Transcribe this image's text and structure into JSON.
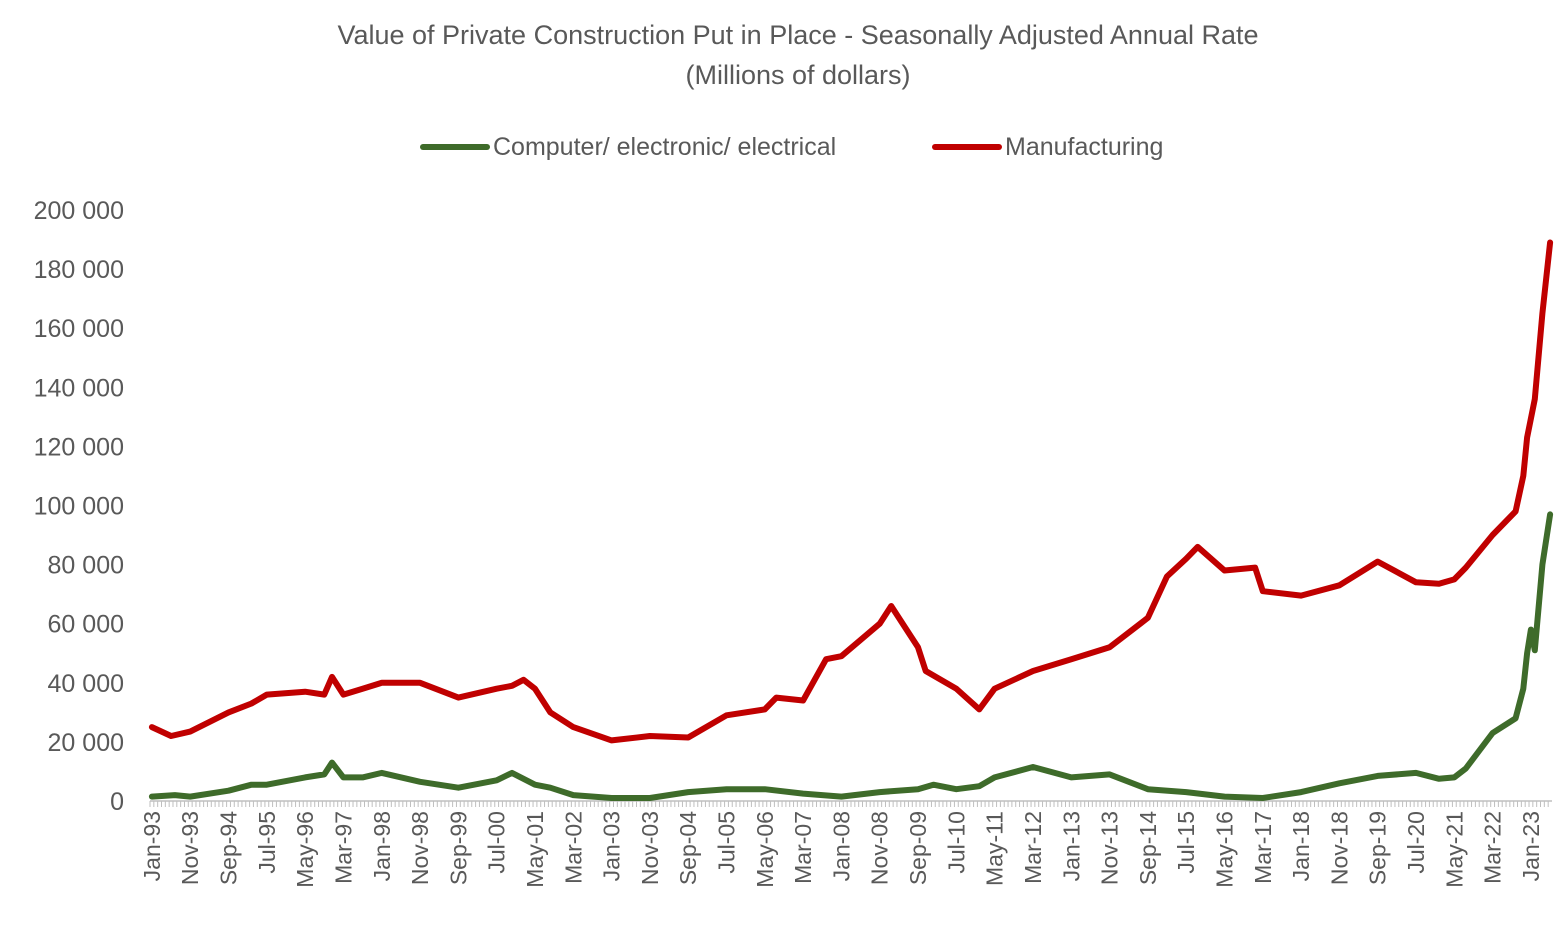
{
  "chart_data": {
    "type": "line",
    "title": "Value of Private Construction Put in Place - Seasonally Adjusted Annual Rate",
    "subtitle": "(Millions of dollars)",
    "xlabel": "",
    "ylabel": "",
    "ylim": [
      0,
      200000
    ],
    "yticks": [
      0,
      20000,
      40000,
      60000,
      80000,
      100000,
      120000,
      140000,
      160000,
      180000,
      200000
    ],
    "ytick_labels": [
      "0",
      "20 000",
      "40 000",
      "60 000",
      "80 000",
      "100 000",
      "120 000",
      "140 000",
      "160 000",
      "180 000",
      "200 000"
    ],
    "xtick_labels": [
      "Jan-93",
      "Nov-93",
      "Sep-94",
      "Jul-95",
      "May-96",
      "Mar-97",
      "Jan-98",
      "Nov-98",
      "Sep-99",
      "Jul-00",
      "May-01",
      "Mar-02",
      "Jan-03",
      "Nov-03",
      "Sep-04",
      "Jul-05",
      "May-06",
      "Mar-07",
      "Jan-08",
      "Nov-08",
      "Sep-09",
      "Jul-10",
      "May-11",
      "Mar-12",
      "Jan-13",
      "Nov-13",
      "Sep-14",
      "Jul-15",
      "May-16",
      "Mar-17",
      "Jan-18",
      "Nov-18",
      "Sep-19",
      "Jul-20",
      "May-21",
      "Mar-22",
      "Jan-23"
    ],
    "legend_position": "top",
    "grid": false,
    "series": [
      {
        "name": "Computer/ electronic/ electrical",
        "color": "#3e6b2a",
        "points": [
          [
            "Jan-93",
            1500
          ],
          [
            "Jul-93",
            2000
          ],
          [
            "Nov-93",
            1500
          ],
          [
            "Sep-94",
            3500
          ],
          [
            "Mar-95",
            5500
          ],
          [
            "Jul-95",
            5500
          ],
          [
            "May-96",
            8000
          ],
          [
            "Oct-96",
            9000
          ],
          [
            "Dec-96",
            13000
          ],
          [
            "Mar-97",
            8000
          ],
          [
            "Aug-97",
            8000
          ],
          [
            "Jan-98",
            9500
          ],
          [
            "Nov-98",
            6500
          ],
          [
            "Sep-99",
            4500
          ],
          [
            "Jul-00",
            7000
          ],
          [
            "Nov-00",
            9500
          ],
          [
            "May-01",
            5500
          ],
          [
            "Sep-01",
            4500
          ],
          [
            "Mar-02",
            2000
          ],
          [
            "Jan-03",
            1000
          ],
          [
            "Nov-03",
            1000
          ],
          [
            "Sep-04",
            3000
          ],
          [
            "Jul-05",
            4000
          ],
          [
            "May-06",
            4000
          ],
          [
            "Mar-07",
            2500
          ],
          [
            "Jan-08",
            1500
          ],
          [
            "Nov-08",
            3000
          ],
          [
            "Sep-09",
            4000
          ],
          [
            "Jan-10",
            5500
          ],
          [
            "Jul-10",
            4000
          ],
          [
            "Jan-11",
            5000
          ],
          [
            "May-11",
            8000
          ],
          [
            "Mar-12",
            11500
          ],
          [
            "Jan-13",
            8000
          ],
          [
            "Nov-13",
            9000
          ],
          [
            "Sep-14",
            4000
          ],
          [
            "Jul-15",
            3000
          ],
          [
            "May-16",
            1500
          ],
          [
            "Mar-17",
            1000
          ],
          [
            "Jan-18",
            3000
          ],
          [
            "Nov-18",
            6000
          ],
          [
            "Sep-19",
            8500
          ],
          [
            "Jul-20",
            9500
          ],
          [
            "Jan-21",
            7500
          ],
          [
            "May-21",
            8000
          ],
          [
            "Aug-21",
            11000
          ],
          [
            "Mar-22",
            23000
          ],
          [
            "Sep-22",
            28000
          ],
          [
            "Nov-22",
            38000
          ],
          [
            "Dec-22",
            50000
          ],
          [
            "Jan-23",
            58000
          ],
          [
            "Feb-23",
            51000
          ],
          [
            "Apr-23",
            80000
          ],
          [
            "Jun-23",
            97000
          ]
        ]
      },
      {
        "name": "Manufacturing",
        "color": "#c00000",
        "points": [
          [
            "Jan-93",
            25000
          ],
          [
            "Jun-93",
            22000
          ],
          [
            "Nov-93",
            23500
          ],
          [
            "Sep-94",
            30000
          ],
          [
            "Mar-95",
            33000
          ],
          [
            "Jul-95",
            36000
          ],
          [
            "May-96",
            37000
          ],
          [
            "Oct-96",
            36000
          ],
          [
            "Dec-96",
            42000
          ],
          [
            "Mar-97",
            36000
          ],
          [
            "Aug-97",
            38000
          ],
          [
            "Jan-98",
            40000
          ],
          [
            "Nov-98",
            40000
          ],
          [
            "Sep-99",
            35000
          ],
          [
            "Jul-00",
            38000
          ],
          [
            "Nov-00",
            39000
          ],
          [
            "Feb-01",
            41000
          ],
          [
            "May-01",
            38000
          ],
          [
            "Sep-01",
            30000
          ],
          [
            "Mar-02",
            25000
          ],
          [
            "Jan-03",
            20500
          ],
          [
            "Nov-03",
            22000
          ],
          [
            "Sep-04",
            21500
          ],
          [
            "Jul-05",
            29000
          ],
          [
            "May-06",
            31000
          ],
          [
            "Aug-06",
            35000
          ],
          [
            "Mar-07",
            34000
          ],
          [
            "Sep-07",
            48000
          ],
          [
            "Jan-08",
            49000
          ],
          [
            "Nov-08",
            60000
          ],
          [
            "Feb-09",
            66000
          ],
          [
            "Sep-09",
            52000
          ],
          [
            "Nov-09",
            44000
          ],
          [
            "Jul-10",
            38000
          ],
          [
            "Jan-11",
            31000
          ],
          [
            "May-11",
            38000
          ],
          [
            "Mar-12",
            44000
          ],
          [
            "Jan-13",
            48000
          ],
          [
            "Nov-13",
            52000
          ],
          [
            "Sep-14",
            62000
          ],
          [
            "Feb-15",
            76000
          ],
          [
            "Jul-15",
            82000
          ],
          [
            "Oct-15",
            86000
          ],
          [
            "May-16",
            78000
          ],
          [
            "Jan-17",
            79000
          ],
          [
            "Mar-17",
            71000
          ],
          [
            "Jan-18",
            69500
          ],
          [
            "Nov-18",
            73000
          ],
          [
            "Sep-19",
            81000
          ],
          [
            "Jul-20",
            74000
          ],
          [
            "Jan-21",
            73500
          ],
          [
            "May-21",
            75000
          ],
          [
            "Aug-21",
            79000
          ],
          [
            "Mar-22",
            90000
          ],
          [
            "Sep-22",
            98000
          ],
          [
            "Nov-22",
            110000
          ],
          [
            "Dec-22",
            123000
          ],
          [
            "Feb-23",
            136000
          ],
          [
            "Apr-23",
            165000
          ],
          [
            "Jun-23",
            189000
          ]
        ]
      }
    ]
  }
}
